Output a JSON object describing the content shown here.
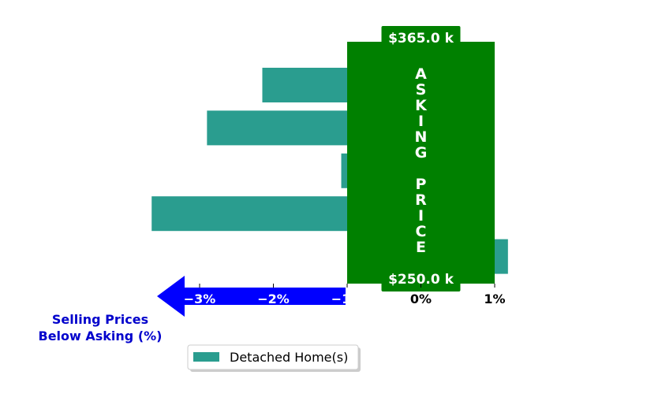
{
  "chart_data": {
    "type": "bar",
    "orientation": "horizontal",
    "categories": [
      "",
      "",
      "",
      "",
      ""
    ],
    "series": [
      {
        "name": "Detached Home(s)",
        "values": [
          -2.15,
          -2.9,
          -1.08,
          -3.65,
          1.18
        ]
      }
    ],
    "xlim": [
      -3.5,
      1.2
    ],
    "xticks": [
      -3,
      -2,
      -1,
      0,
      1
    ],
    "xtick_labels": [
      "−3%",
      "−2%",
      "−1%",
      "0%",
      "1%"
    ],
    "asking_band": {
      "from": -1,
      "to": 1,
      "label": "ASKING PRICE"
    },
    "top_price": "$365.0 k",
    "bottom_price": "$250.0 k",
    "xlabel": "Selling Prices\nBelow Asking (%)",
    "legend": {
      "label": "Detached Home(s)",
      "position": "lower-center"
    },
    "colors": {
      "bar": "#2a9d8f",
      "band": "#008000",
      "arrow": "#0000ff",
      "caption": "#0000cc"
    }
  }
}
